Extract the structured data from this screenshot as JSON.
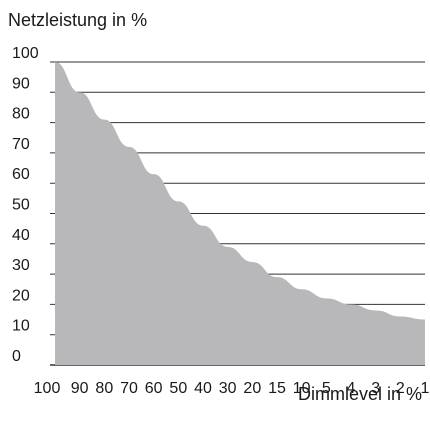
{
  "chart_data": {
    "type": "area",
    "title": "",
    "ylabel": "Netzleistung in %",
    "xlabel": "Dimmlevel in %",
    "x": [
      "100",
      "90",
      "80",
      "70",
      "60",
      "50",
      "40",
      "30",
      "20",
      "15",
      "10",
      "5",
      "4",
      "3",
      "2",
      "1"
    ],
    "y_ticks": [
      100,
      90,
      80,
      70,
      60,
      50,
      40,
      30,
      20,
      10,
      0
    ],
    "ylim": [
      0,
      100
    ],
    "series": [
      {
        "values": [
          100,
          90,
          81,
          72,
          63,
          54,
          46,
          39,
          34,
          29,
          25,
          22,
          20,
          18,
          16,
          15
        ]
      }
    ],
    "grid": true,
    "fill_color": "#b8b8ba",
    "grid_color": "#333333"
  }
}
